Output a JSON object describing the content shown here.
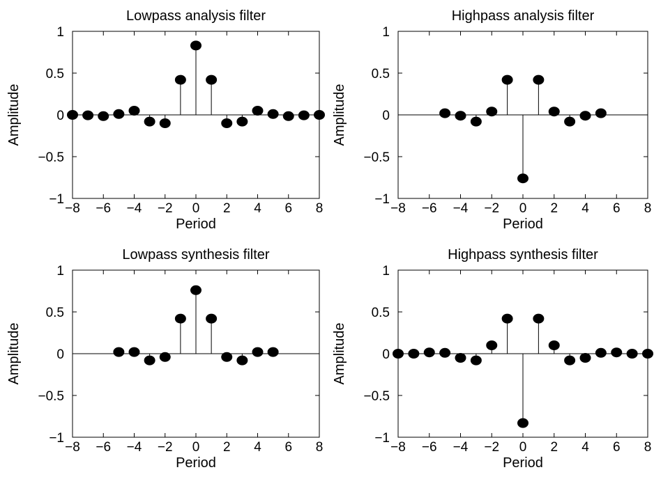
{
  "chart_data": [
    {
      "type": "stem",
      "title": "Lowpass analysis filter",
      "xlabel": "Period",
      "ylabel": "Amplitude",
      "xlim": [
        -8,
        8
      ],
      "ylim": [
        -1,
        1
      ],
      "xticks": [
        "−8",
        "−6",
        "−4",
        "−2",
        "0",
        "2",
        "4",
        "6",
        "8"
      ],
      "yticks": [
        "−1",
        "−0.5",
        "0",
        "0.5",
        "1"
      ],
      "grid": false,
      "x": [
        -8,
        -7,
        -6,
        -5,
        -4,
        -3,
        -2,
        -1,
        0,
        1,
        2,
        3,
        4,
        5,
        6,
        7,
        8
      ],
      "values": [
        0.0,
        -0.005,
        -0.015,
        0.01,
        0.05,
        -0.08,
        -0.1,
        0.42,
        0.83,
        0.42,
        -0.1,
        -0.08,
        0.05,
        0.01,
        -0.015,
        -0.005,
        0.0
      ]
    },
    {
      "type": "stem",
      "title": "Highpass analysis filter",
      "xlabel": "Period",
      "ylabel": "Amplitude",
      "xlim": [
        -8,
        8
      ],
      "ylim": [
        -1,
        1
      ],
      "xticks": [
        "−8",
        "−6",
        "−4",
        "−2",
        "0",
        "2",
        "4",
        "6",
        "8"
      ],
      "yticks": [
        "−1",
        "−0.5",
        "0",
        "0.5",
        "1"
      ],
      "grid": false,
      "x": [
        -5,
        -4,
        -3,
        -2,
        -1,
        0,
        1,
        2,
        3,
        4,
        5
      ],
      "values": [
        0.02,
        -0.01,
        -0.08,
        0.04,
        0.42,
        -0.76,
        0.42,
        0.04,
        -0.08,
        -0.01,
        0.02
      ]
    },
    {
      "type": "stem",
      "title": "Lowpass synthesis filter",
      "xlabel": "Period",
      "ylabel": "Amplitude",
      "xlim": [
        -8,
        8
      ],
      "ylim": [
        -1,
        1
      ],
      "xticks": [
        "−8",
        "−6",
        "−4",
        "−2",
        "0",
        "2",
        "4",
        "6",
        "8"
      ],
      "yticks": [
        "−1",
        "−0.5",
        "0",
        "0.5",
        "1"
      ],
      "grid": false,
      "x": [
        -5,
        -4,
        -3,
        -2,
        -1,
        0,
        1,
        2,
        3,
        4,
        5
      ],
      "values": [
        0.02,
        0.02,
        -0.08,
        -0.04,
        0.42,
        0.76,
        0.42,
        -0.04,
        -0.08,
        0.02,
        0.02
      ]
    },
    {
      "type": "stem",
      "title": "Highpass synthesis filter",
      "xlabel": "Period",
      "ylabel": "Amplitude",
      "xlim": [
        -8,
        8
      ],
      "ylim": [
        -1,
        1
      ],
      "xticks": [
        "−8",
        "−6",
        "−4",
        "−2",
        "0",
        "2",
        "4",
        "6",
        "8"
      ],
      "yticks": [
        "−1",
        "−0.5",
        "0",
        "0.5",
        "1"
      ],
      "grid": false,
      "x": [
        -8,
        -7,
        -6,
        -5,
        -4,
        -3,
        -2,
        -1,
        0,
        1,
        2,
        3,
        4,
        5,
        6,
        7,
        8
      ],
      "values": [
        0.0,
        0.0,
        0.015,
        0.01,
        -0.05,
        -0.08,
        0.1,
        0.42,
        -0.83,
        0.42,
        0.1,
        -0.08,
        -0.05,
        0.01,
        0.015,
        0.0,
        0.0
      ]
    }
  ]
}
